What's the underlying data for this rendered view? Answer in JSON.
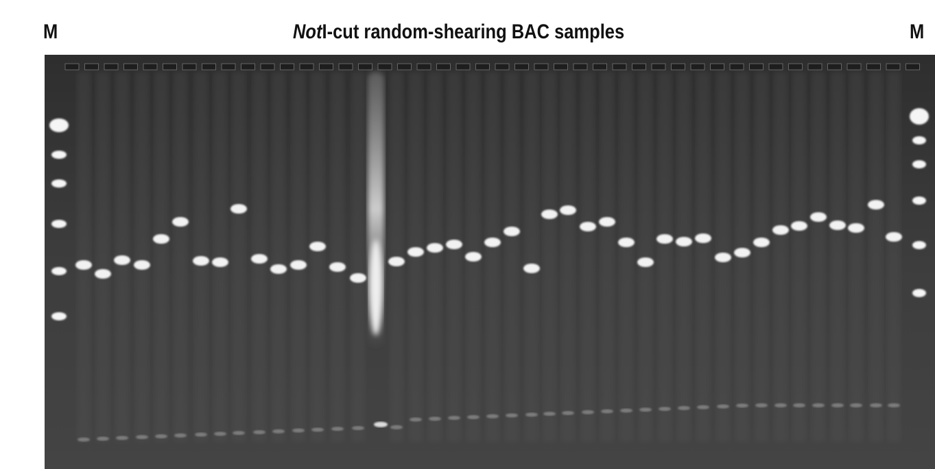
{
  "header": {
    "left_label": "M",
    "title_italic": "Not",
    "title_rest": "I-cut random-shearing BAC samples",
    "right_label": "M"
  }
}
